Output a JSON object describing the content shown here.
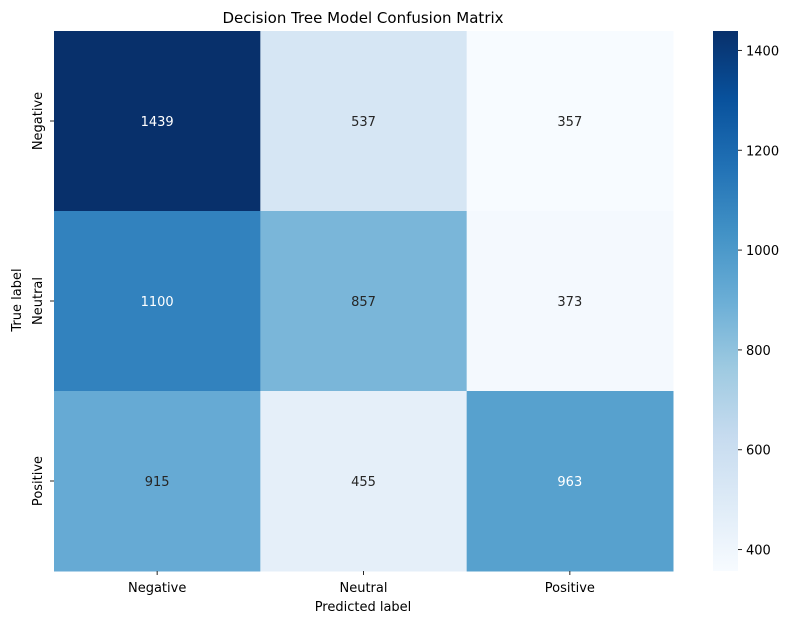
{
  "chart_data": {
    "type": "heatmap",
    "title": "Decision Tree Model Confusion Matrix",
    "xlabel": "Predicted label",
    "ylabel": "True label",
    "x_categories": [
      "Negative",
      "Neutral",
      "Positive"
    ],
    "y_categories": [
      "Negative",
      "Neutral",
      "Positive"
    ],
    "values": [
      [
        1439,
        537,
        357
      ],
      [
        1100,
        857,
        373
      ],
      [
        915,
        455,
        963
      ]
    ],
    "colormap": "Blues",
    "colorbar": {
      "min": 357,
      "max": 1439,
      "ticks": [
        400,
        600,
        800,
        1000,
        1200,
        1400
      ]
    }
  }
}
